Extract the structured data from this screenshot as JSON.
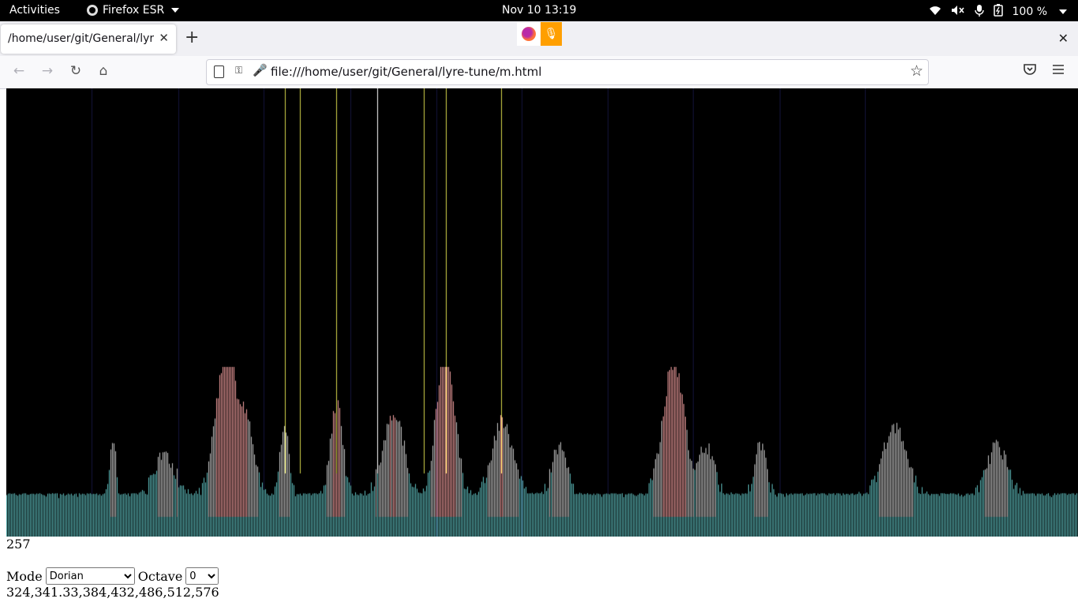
{
  "system_bar": {
    "activities": "Activities",
    "app_name": "Firefox ESR",
    "clock": "Nov 10  13:19",
    "battery": "100 %"
  },
  "browser": {
    "tab_title": "/home/user/git/General/lyre-tune/m.html",
    "url": "file:///home/user/git/General/lyre-tune/m.html"
  },
  "page": {
    "number": "257",
    "mode_label": "Mode",
    "mode_value": "Dorian",
    "octave_label": "Octave",
    "octave_value": "0",
    "frequencies": "324,341.33,384,432,486,512,576"
  },
  "colors": {
    "spectrum_background": "#000000",
    "low_bar": "#5fbfbf",
    "mid_bar": "#c8c8c8",
    "peak_bar": "#f4a0a0",
    "note_line": "#d6d64a",
    "note_line_bright": "#ffffff",
    "grid_line": "#14143a"
  }
}
